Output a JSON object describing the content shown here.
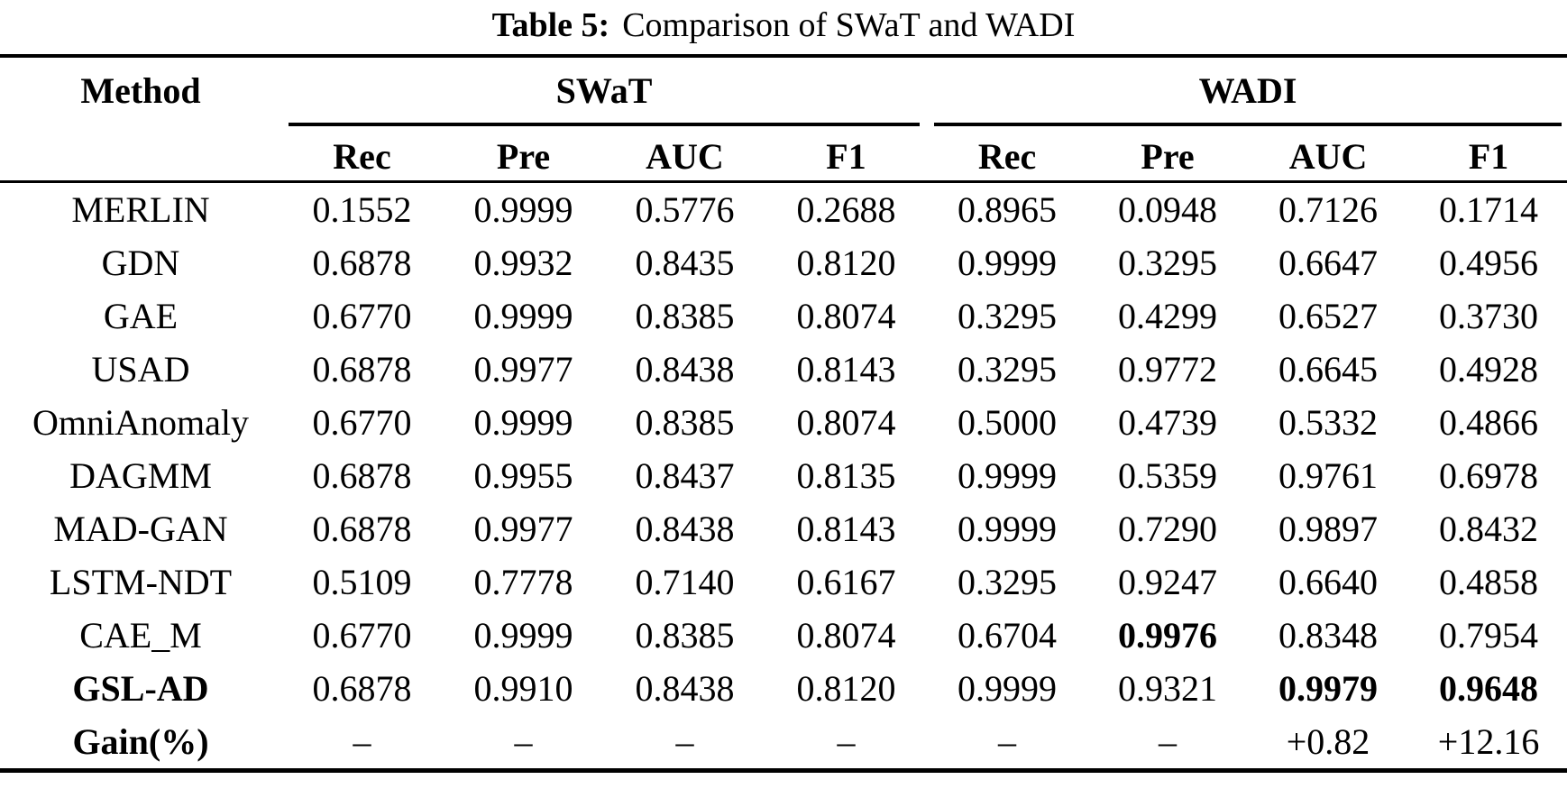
{
  "caption": {
    "label": "Table 5:",
    "text": "Comparison of SWaT and WADI"
  },
  "colors": {
    "text": "#000000",
    "background": "#ffffff",
    "rule": "#000000"
  },
  "table": {
    "method_header": "Method",
    "groups": [
      {
        "name": "SWaT",
        "columns": [
          "Rec",
          "Pre",
          "AUC",
          "F1"
        ]
      },
      {
        "name": "WADI",
        "columns": [
          "Rec",
          "Pre",
          "AUC",
          "F1"
        ]
      }
    ],
    "rows": [
      {
        "method": "MERLIN",
        "method_bold": false,
        "values": [
          "0.1552",
          "0.9999",
          "0.5776",
          "0.2688",
          "0.8965",
          "0.0948",
          "0.7126",
          "0.1714"
        ],
        "bold": [
          false,
          false,
          false,
          false,
          false,
          false,
          false,
          false
        ]
      },
      {
        "method": "GDN",
        "method_bold": false,
        "values": [
          "0.6878",
          "0.9932",
          "0.8435",
          "0.8120",
          "0.9999",
          "0.3295",
          "0.6647",
          "0.4956"
        ],
        "bold": [
          false,
          false,
          false,
          false,
          false,
          false,
          false,
          false
        ]
      },
      {
        "method": "GAE",
        "method_bold": false,
        "values": [
          "0.6770",
          "0.9999",
          "0.8385",
          "0.8074",
          "0.3295",
          "0.4299",
          "0.6527",
          "0.3730"
        ],
        "bold": [
          false,
          false,
          false,
          false,
          false,
          false,
          false,
          false
        ]
      },
      {
        "method": "USAD",
        "method_bold": false,
        "values": [
          "0.6878",
          "0.9977",
          "0.8438",
          "0.8143",
          "0.3295",
          "0.9772",
          "0.6645",
          "0.4928"
        ],
        "bold": [
          false,
          false,
          false,
          false,
          false,
          false,
          false,
          false
        ]
      },
      {
        "method": "OmniAnomaly",
        "method_bold": false,
        "values": [
          "0.6770",
          "0.9999",
          "0.8385",
          "0.8074",
          "0.5000",
          "0.4739",
          "0.5332",
          "0.4866"
        ],
        "bold": [
          false,
          false,
          false,
          false,
          false,
          false,
          false,
          false
        ]
      },
      {
        "method": "DAGMM",
        "method_bold": false,
        "values": [
          "0.6878",
          "0.9955",
          "0.8437",
          "0.8135",
          "0.9999",
          "0.5359",
          "0.9761",
          "0.6978"
        ],
        "bold": [
          false,
          false,
          false,
          false,
          false,
          false,
          false,
          false
        ]
      },
      {
        "method": "MAD-GAN",
        "method_bold": false,
        "values": [
          "0.6878",
          "0.9977",
          "0.8438",
          "0.8143",
          "0.9999",
          "0.7290",
          "0.9897",
          "0.8432"
        ],
        "bold": [
          false,
          false,
          false,
          false,
          false,
          false,
          false,
          false
        ]
      },
      {
        "method": "LSTM-NDT",
        "method_bold": false,
        "values": [
          "0.5109",
          "0.7778",
          "0.7140",
          "0.6167",
          "0.3295",
          "0.9247",
          "0.6640",
          "0.4858"
        ],
        "bold": [
          false,
          false,
          false,
          false,
          false,
          false,
          false,
          false
        ]
      },
      {
        "method": "CAE_M",
        "method_bold": false,
        "values": [
          "0.6770",
          "0.9999",
          "0.8385",
          "0.8074",
          "0.6704",
          "0.9976",
          "0.8348",
          "0.7954"
        ],
        "bold": [
          false,
          false,
          false,
          false,
          false,
          true,
          false,
          false
        ]
      },
      {
        "method": "GSL-AD",
        "method_bold": true,
        "values": [
          "0.6878",
          "0.9910",
          "0.8438",
          "0.8120",
          "0.9999",
          "0.9321",
          "0.9979",
          "0.9648"
        ],
        "bold": [
          false,
          false,
          false,
          false,
          false,
          false,
          true,
          true
        ]
      },
      {
        "method": "Gain(%)",
        "method_bold": true,
        "values": [
          "–",
          "–",
          "–",
          "–",
          "–",
          "–",
          "+0.82",
          "+12.16"
        ],
        "bold": [
          false,
          false,
          false,
          false,
          false,
          false,
          false,
          false
        ]
      }
    ]
  }
}
